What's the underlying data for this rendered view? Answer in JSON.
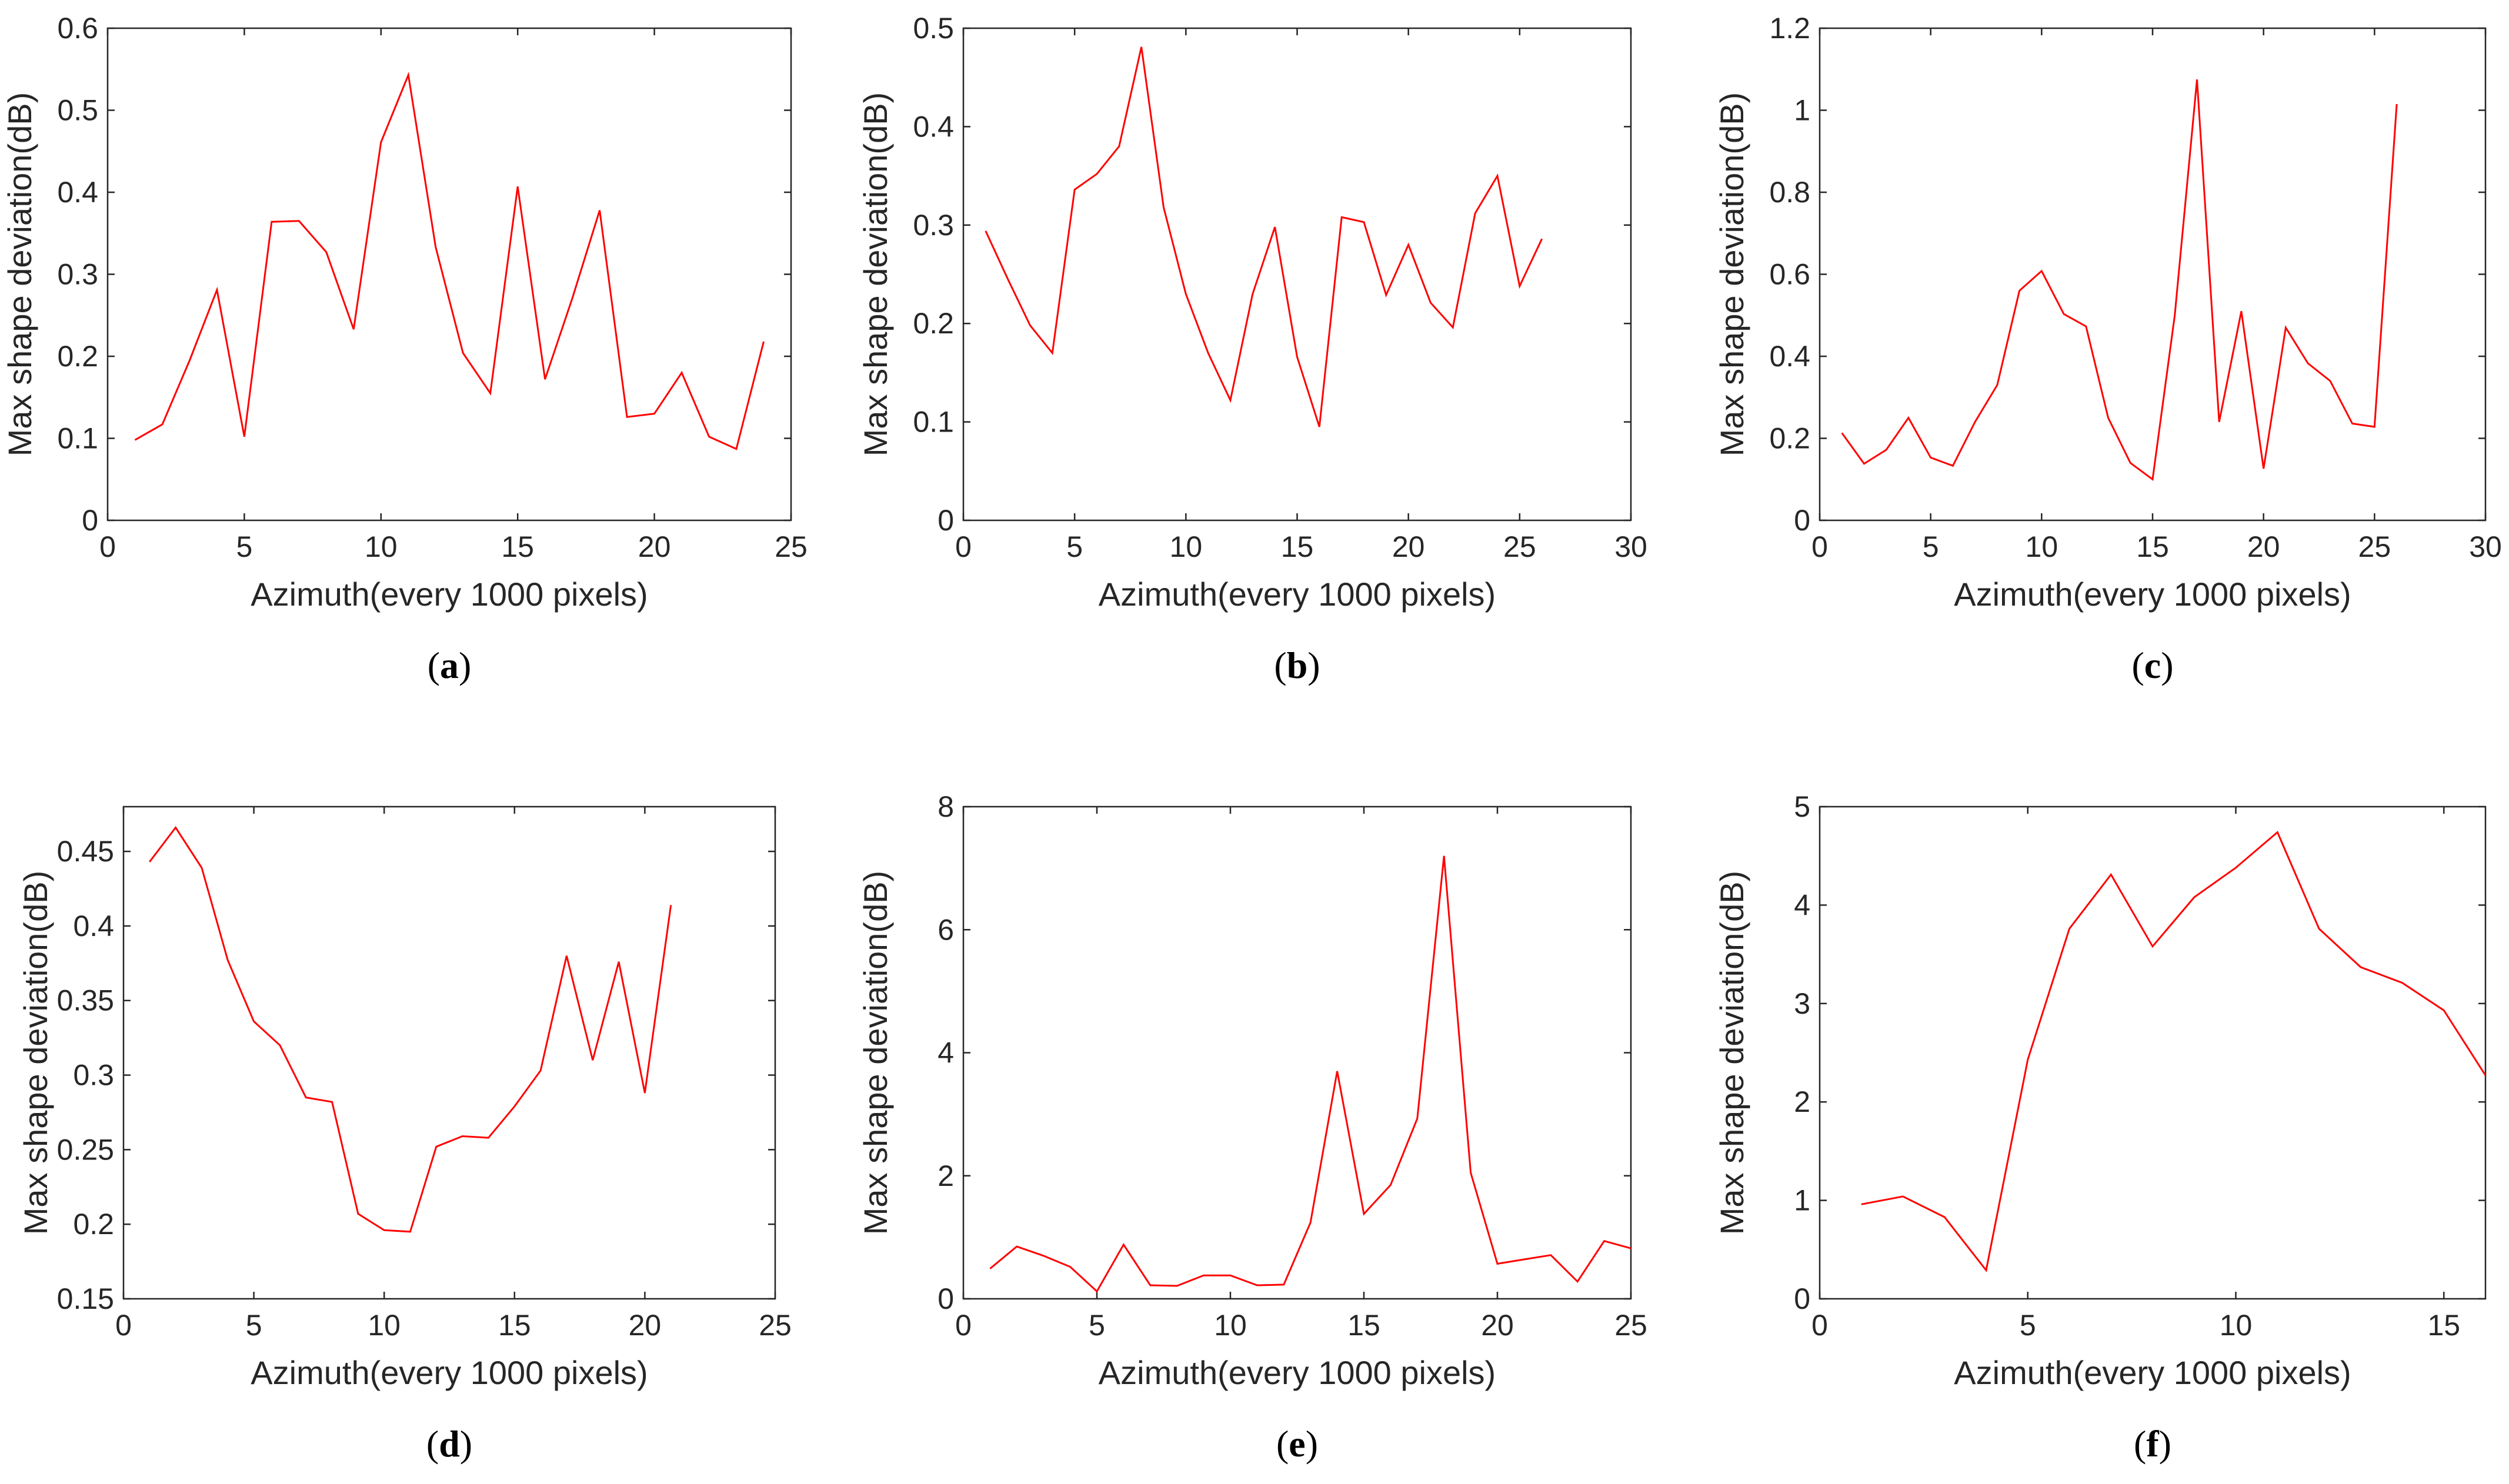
{
  "figure": {
    "accent_color": "#ff0000",
    "axis_color": "#262626"
  },
  "chart_data": [
    {
      "type": "line",
      "label": "a",
      "title": "",
      "xlabel": "Azimuth(every 1000 pixels)",
      "ylabel": "Max shape deviation(dB)",
      "xlim": [
        0,
        25
      ],
      "ylim": [
        0,
        0.6
      ],
      "xticks": [
        0,
        5,
        10,
        15,
        20,
        25
      ],
      "yticks": [
        0,
        0.1,
        0.2,
        0.3,
        0.4,
        0.5,
        0.6
      ],
      "series": [
        {
          "name": "Max shape deviation",
          "x": [
            1,
            2,
            3,
            4,
            5,
            6,
            7,
            8,
            9,
            10,
            11,
            12,
            13,
            14,
            15,
            16,
            17,
            18,
            19,
            20,
            21,
            22,
            23,
            24
          ],
          "values": [
            0.098,
            0.117,
            0.195,
            0.281,
            0.102,
            0.364,
            0.365,
            0.327,
            0.233,
            0.461,
            0.543,
            0.333,
            0.204,
            0.155,
            0.407,
            0.172,
            0.271,
            0.378,
            0.126,
            0.13,
            0.18,
            0.102,
            0.087,
            0.218
          ]
        }
      ]
    },
    {
      "type": "line",
      "label": "b",
      "title": "",
      "xlabel": "Azimuth(every 1000 pixels)",
      "ylabel": "Max shape deviation(dB)",
      "xlim": [
        0,
        30
      ],
      "ylim": [
        0,
        0.5
      ],
      "xticks": [
        0,
        5,
        10,
        15,
        20,
        25,
        30
      ],
      "yticks": [
        0,
        0.1,
        0.2,
        0.3,
        0.4,
        0.5
      ],
      "series": [
        {
          "name": "Max shape deviation",
          "x": [
            1,
            2,
            3,
            4,
            5,
            6,
            7,
            8,
            9,
            10,
            11,
            12,
            13,
            14,
            15,
            16,
            17,
            18,
            19,
            20,
            21,
            22,
            23,
            24,
            25,
            26
          ],
          "values": [
            0.294,
            0.245,
            0.198,
            0.17,
            0.336,
            0.352,
            0.38,
            0.481,
            0.318,
            0.23,
            0.17,
            0.122,
            0.23,
            0.298,
            0.166,
            0.095,
            0.308,
            0.303,
            0.229,
            0.28,
            0.221,
            0.196,
            0.312,
            0.35,
            0.238,
            0.286
          ]
        }
      ]
    },
    {
      "type": "line",
      "label": "c",
      "title": "",
      "xlabel": "Azimuth(every 1000 pixels)",
      "ylabel": "Max shape deviation(dB)",
      "xlim": [
        0,
        30
      ],
      "ylim": [
        0,
        1.2
      ],
      "xticks": [
        0,
        5,
        10,
        15,
        20,
        25,
        30
      ],
      "yticks": [
        0,
        0.2,
        0.4,
        0.6,
        0.8,
        1,
        1.2
      ],
      "series": [
        {
          "name": "Max shape deviation",
          "x": [
            1,
            2,
            3,
            4,
            5,
            6,
            7,
            8,
            9,
            10,
            11,
            12,
            13,
            14,
            15,
            16,
            17,
            18,
            19,
            20,
            21,
            22,
            23,
            24,
            25,
            26
          ],
          "values": [
            0.213,
            0.138,
            0.172,
            0.25,
            0.153,
            0.133,
            0.24,
            0.33,
            0.56,
            0.608,
            0.503,
            0.473,
            0.25,
            0.14,
            0.1,
            0.5,
            1.075,
            0.24,
            0.51,
            0.126,
            0.47,
            0.383,
            0.34,
            0.236,
            0.228,
            1.015
          ]
        }
      ]
    },
    {
      "type": "line",
      "label": "d",
      "title": "",
      "xlabel": "Azimuth(every 1000 pixels)",
      "ylabel": "Max shape deviation(dB)",
      "xlim": [
        0,
        25
      ],
      "ylim": [
        0.15,
        0.48
      ],
      "xticks": [
        0,
        5,
        10,
        15,
        20,
        25
      ],
      "yticks": [
        0.15,
        0.2,
        0.25,
        0.3,
        0.35,
        0.4,
        0.45
      ],
      "series": [
        {
          "name": "Max shape deviation",
          "x": [
            1,
            2,
            3,
            4,
            5,
            6,
            7,
            8,
            9,
            10,
            11,
            12,
            13,
            14,
            15,
            16,
            17,
            18,
            19,
            20,
            21
          ],
          "values": [
            0.443,
            0.466,
            0.439,
            0.377,
            0.336,
            0.32,
            0.285,
            0.282,
            0.207,
            0.196,
            0.195,
            0.252,
            0.259,
            0.258,
            0.279,
            0.303,
            0.38,
            0.31,
            0.376,
            0.288,
            0.414
          ]
        }
      ]
    },
    {
      "type": "line",
      "label": "e",
      "title": "",
      "xlabel": "Azimuth(every 1000 pixels)",
      "ylabel": "Max shape deviation(dB)",
      "xlim": [
        0,
        25
      ],
      "ylim": [
        0,
        8
      ],
      "xticks": [
        0,
        5,
        10,
        15,
        20,
        25
      ],
      "yticks": [
        0,
        2,
        4,
        6,
        8
      ],
      "series": [
        {
          "name": "Max shape deviation",
          "x": [
            1,
            2,
            3,
            4,
            5,
            6,
            7,
            8,
            9,
            10,
            11,
            12,
            13,
            14,
            15,
            16,
            17,
            18,
            19,
            20,
            21,
            22,
            23,
            24,
            25
          ],
          "values": [
            0.49,
            0.85,
            0.7,
            0.52,
            0.12,
            0.88,
            0.22,
            0.21,
            0.38,
            0.38,
            0.22,
            0.23,
            1.24,
            3.7,
            1.38,
            1.85,
            2.93,
            7.2,
            2.05,
            0.57,
            0.64,
            0.71,
            0.28,
            0.94,
            0.82
          ]
        }
      ]
    },
    {
      "type": "line",
      "label": "f",
      "title": "",
      "xlabel": "Azimuth(every 1000 pixels)",
      "ylabel": "Max shape deviation(dB)",
      "xlim": [
        0,
        16
      ],
      "ylim": [
        0,
        5
      ],
      "xticks": [
        0,
        5,
        10,
        15
      ],
      "yticks": [
        0,
        1,
        2,
        3,
        4,
        5
      ],
      "series": [
        {
          "name": "Max shape deviation",
          "x": [
            1,
            2,
            3,
            4,
            5,
            6,
            7,
            8,
            9,
            10,
            11,
            12,
            13,
            14,
            15,
            16
          ],
          "values": [
            0.96,
            1.04,
            0.83,
            0.29,
            2.43,
            3.76,
            4.31,
            3.58,
            4.08,
            4.38,
            4.74,
            3.76,
            3.37,
            3.21,
            2.93,
            2.27
          ]
        }
      ]
    }
  ]
}
